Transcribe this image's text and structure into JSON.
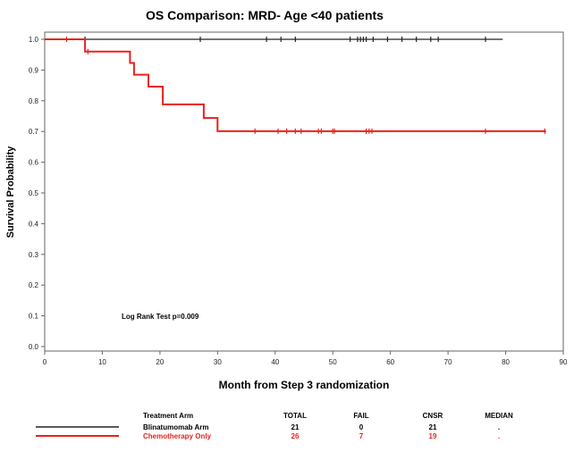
{
  "chart_data": {
    "type": "line",
    "title": "OS Comparison: MRD- Age <40 patients",
    "xlabel": "Month from Step 3 randomization",
    "ylabel": "Survival Probability",
    "xlim": [
      0,
      90
    ],
    "ylim": [
      0,
      1
    ],
    "xticks": [
      "0",
      "10",
      "20",
      "30",
      "40",
      "50",
      "60",
      "70",
      "80",
      "90"
    ],
    "yticks": [
      "0.0",
      "0.1",
      "0.2",
      "0.3",
      "0.4",
      "0.5",
      "0.6",
      "0.7",
      "0.8",
      "0.9",
      "1.0"
    ],
    "grid": false,
    "annotation": "Log Rank Test p=0.009",
    "series": [
      {
        "name": "Blinatumomab Arm",
        "color": "#222222",
        "steps": [
          [
            0,
            1.0
          ],
          [
            79.5,
            1.0
          ]
        ],
        "censors": [
          [
            7,
            1.0
          ],
          [
            27,
            1.0
          ],
          [
            38.5,
            1.0
          ],
          [
            41,
            1.0
          ],
          [
            43.5,
            1.0
          ],
          [
            53,
            1.0
          ],
          [
            54.3,
            1.0
          ],
          [
            54.8,
            1.0
          ],
          [
            55.3,
            1.0
          ],
          [
            55.8,
            1.0
          ],
          [
            57,
            1.0
          ],
          [
            59.5,
            1.0
          ],
          [
            62,
            1.0
          ],
          [
            64.5,
            1.0
          ],
          [
            67,
            1.0
          ],
          [
            68.3,
            1.0
          ],
          [
            76.5,
            1.0
          ]
        ]
      },
      {
        "name": "Chemotherapy Only",
        "color": "#e8221d",
        "steps": [
          [
            0,
            1.0
          ],
          [
            7,
            1.0
          ],
          [
            7,
            0.96
          ],
          [
            14.8,
            0.96
          ],
          [
            14.8,
            0.923
          ],
          [
            15.5,
            0.923
          ],
          [
            15.5,
            0.885
          ],
          [
            18,
            0.885
          ],
          [
            18,
            0.846
          ],
          [
            20.5,
            0.846
          ],
          [
            20.5,
            0.788
          ],
          [
            27.6,
            0.788
          ],
          [
            27.6,
            0.744
          ],
          [
            30,
            0.744
          ],
          [
            30,
            0.701
          ],
          [
            87,
            0.701
          ]
        ],
        "censors": [
          [
            3.8,
            1.0
          ],
          [
            7.5,
            0.96
          ],
          [
            36.5,
            0.701
          ],
          [
            40.5,
            0.701
          ],
          [
            42,
            0.701
          ],
          [
            43.5,
            0.701
          ],
          [
            44.5,
            0.701
          ],
          [
            47.5,
            0.701
          ],
          [
            48,
            0.701
          ],
          [
            50,
            0.701
          ],
          [
            50.3,
            0.701
          ],
          [
            55.8,
            0.701
          ],
          [
            56.3,
            0.701
          ],
          [
            56.8,
            0.701
          ],
          [
            76.5,
            0.701
          ],
          [
            86.8,
            0.701
          ]
        ]
      }
    ]
  },
  "legend_table": {
    "headers": [
      "Treatment Arm",
      "TOTAL",
      "FAIL",
      "CNSR",
      "MEDIAN"
    ],
    "rows": [
      {
        "arm": "Blinatumomab Arm",
        "total": "21",
        "fail": "0",
        "cnsr": "21",
        "median": ".",
        "color": "#222222",
        "text_color": "#000000"
      },
      {
        "arm": "Chemotherapy Only",
        "total": "26",
        "fail": "7",
        "cnsr": "19",
        "median": ".",
        "color": "#e8221d",
        "text_color": "#e8221d"
      }
    ]
  }
}
